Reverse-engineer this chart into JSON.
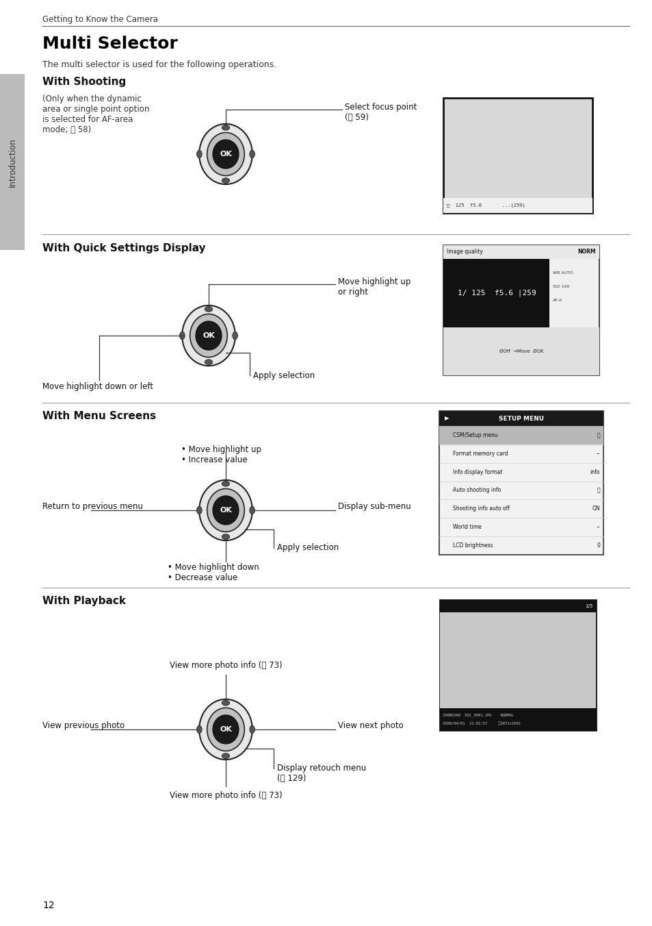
{
  "bg_color": "#ffffff",
  "page_width": 9.54,
  "page_height": 13.52,
  "header_text": "Getting to Know the Camera",
  "title": "Multi Selector",
  "intro": "The multi selector is used for the following operations.",
  "sidebar_text": "Introduction",
  "page_number": "12",
  "sections": [
    {
      "heading": "With Shooting",
      "heading_bold": true
    },
    {
      "heading": "With Quick Settings Display",
      "heading_bold": true
    },
    {
      "heading": "With Menu Screens",
      "heading_bold": true
    },
    {
      "heading": "With Playback",
      "heading_bold": true
    }
  ]
}
